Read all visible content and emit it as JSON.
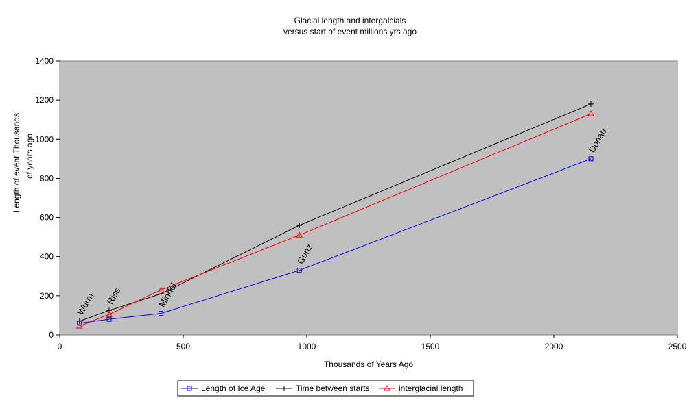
{
  "chart_data": {
    "type": "line",
    "title": "Glacial length and intergalcials",
    "subtitle": "versus start of event millions yrs ago",
    "xlabel": "Thousands of Years Ago",
    "ylabel_line1": "Length of event Thousands",
    "ylabel_line2": "of years ago",
    "xlim": [
      0,
      2500
    ],
    "ylim": [
      0,
      1400
    ],
    "xticks": [
      0,
      500,
      1000,
      1500,
      2000,
      2500
    ],
    "yticks": [
      0,
      200,
      400,
      600,
      800,
      1000,
      1200,
      1400
    ],
    "grid": false,
    "plot_background": "#c0c0c0",
    "legend_position": "bottom-center",
    "series": [
      {
        "name": "Length of Ice Age",
        "color": "#0000ff",
        "marker": "square",
        "x": [
          80,
          200,
          410,
          970,
          2150
        ],
        "y": [
          60,
          80,
          110,
          330,
          900
        ]
      },
      {
        "name": "Time between starts",
        "color": "#000000",
        "marker": "plus",
        "x": [
          80,
          200,
          410,
          970,
          2150
        ],
        "y": [
          70,
          125,
          210,
          560,
          1180
        ]
      },
      {
        "name": "interglacial length",
        "color": "#ff0000",
        "marker": "triangle",
        "x": [
          80,
          200,
          410,
          970,
          2150
        ],
        "y": [
          45,
          105,
          230,
          510,
          1130
        ]
      }
    ],
    "annotations": [
      {
        "text": "Wurm",
        "x": 80,
        "y": 70
      },
      {
        "text": "Riss",
        "x": 200,
        "y": 125
      },
      {
        "text": "Mindel",
        "x": 410,
        "y": 110
      },
      {
        "text": "Gunz",
        "x": 970,
        "y": 330
      },
      {
        "text": "Donau",
        "x": 2150,
        "y": 900
      }
    ]
  }
}
